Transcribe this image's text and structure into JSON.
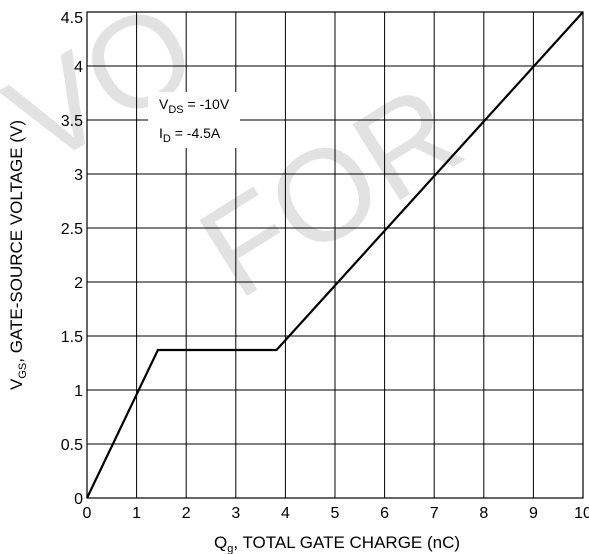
{
  "chart_data": {
    "type": "line",
    "xlabel": {
      "main": "Q",
      "sub": "g",
      "rest": ", TOTAL GATE CHARGE (nC)"
    },
    "ylabel": {
      "main": "V",
      "sub": "GS",
      "rest": ", GATE-SOURCE VOLTAGE (V)"
    },
    "xlim": [
      0,
      10
    ],
    "ylim": [
      0,
      4.5
    ],
    "xticks": [
      "0",
      "1",
      "2",
      "3",
      "4",
      "5",
      "6",
      "7",
      "8",
      "9",
      "10"
    ],
    "yticks": [
      "0",
      "0.5",
      "1",
      "1.5",
      "2",
      "2.5",
      "3",
      "3.5",
      "4",
      "4.5"
    ],
    "grid": true,
    "series": [
      {
        "x": [
          0,
          1.43,
          3.82,
          10
        ],
        "y": [
          0,
          1.37,
          1.37,
          4.5
        ]
      }
    ],
    "annotations": [
      {
        "main": "V",
        "sub": "DS",
        "rest": " = -10V"
      },
      {
        "main": "I",
        "sub": "D",
        "rest": " = -4.5A"
      }
    ],
    "watermark": [
      "VO",
      "FOR"
    ],
    "colors": {
      "line": "#000000",
      "grid": "#000000",
      "background": "#ffffff"
    }
  }
}
